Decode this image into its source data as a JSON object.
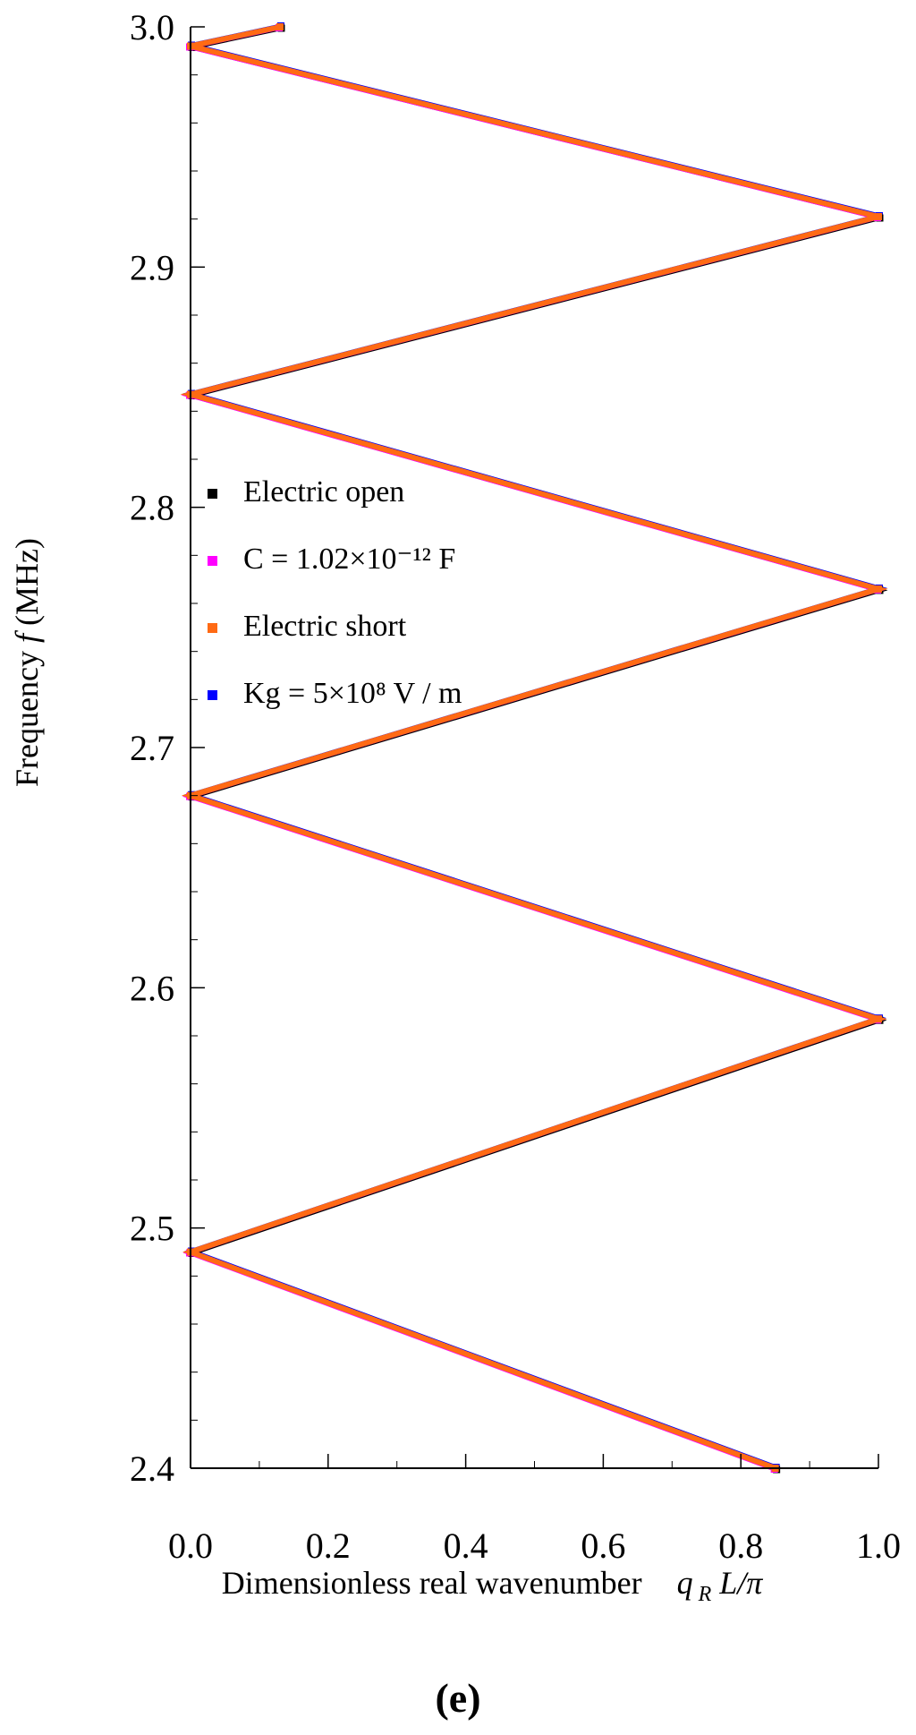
{
  "chart_data": {
    "type": "line",
    "title": "",
    "panel_label": "(e)",
    "xlabel": "Dimensionless real wavenumber",
    "xlabel_math": "q_R L/π",
    "ylabel": "Frequency f (MHz)",
    "xlim": [
      0.0,
      1.0
    ],
    "ylim": [
      2.4,
      3.0
    ],
    "x_ticks": [
      "0.0",
      "0.2",
      "0.4",
      "0.6",
      "0.8",
      "1.0"
    ],
    "y_ticks": [
      "2.4",
      "2.5",
      "2.6",
      "2.7",
      "2.8",
      "2.9",
      "3.0"
    ],
    "grid": false,
    "legend_position": "middle-left",
    "series": [
      {
        "name": "Electric open",
        "color": "#000000",
        "x": [
          0.85,
          0.0,
          1.0,
          0.0,
          1.0,
          0.0,
          1.0,
          0.0,
          0.13
        ],
        "y": [
          2.4,
          2.49,
          2.587,
          2.68,
          2.766,
          2.847,
          2.921,
          2.992,
          3.0
        ]
      },
      {
        "name": "C = 1.02×10⁻¹² F",
        "color": "#ff00ff",
        "x": [
          0.85,
          0.0,
          1.0,
          0.0,
          1.0,
          0.0,
          1.0,
          0.0,
          0.13
        ],
        "y": [
          2.4,
          2.49,
          2.587,
          2.68,
          2.766,
          2.847,
          2.921,
          2.992,
          3.0
        ]
      },
      {
        "name": "Electric short",
        "color": "#ff6a14",
        "x": [
          0.85,
          0.0,
          1.0,
          0.0,
          1.0,
          0.0,
          1.0,
          0.0,
          0.13
        ],
        "y": [
          2.4,
          2.49,
          2.587,
          2.68,
          2.766,
          2.847,
          2.921,
          2.992,
          3.0
        ]
      },
      {
        "name": "Kg = 5×10⁸ V / m",
        "color": "#0000ff",
        "x": [
          0.85,
          0.0,
          1.0,
          0.0,
          1.0,
          0.0,
          1.0,
          0.0,
          0.13
        ],
        "y": [
          2.4,
          2.49,
          2.587,
          2.68,
          2.766,
          2.847,
          2.921,
          2.992,
          3.0
        ]
      }
    ]
  }
}
